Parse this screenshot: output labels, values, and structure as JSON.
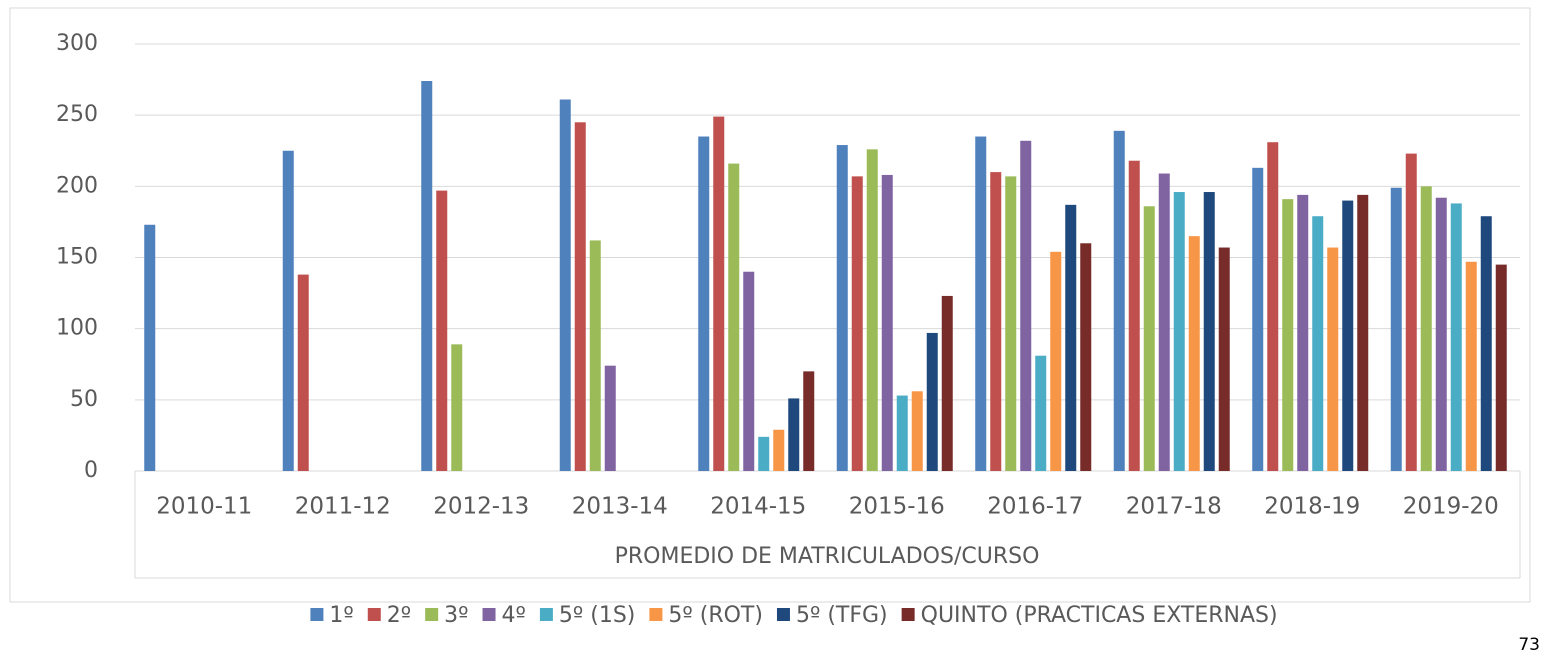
{
  "chart_data": {
    "type": "bar",
    "x_group_label": "PROMEDIO DE MATRICULADOS/CURSO",
    "categories": [
      "2010-11",
      "2011-12",
      "2012-13",
      "2013-14",
      "2014-15",
      "2015-16",
      "2016-17",
      "2017-18",
      "2018-19",
      "2019-20"
    ],
    "series": [
      {
        "name": "1º",
        "color": "#4f81bd",
        "values": [
          173,
          225,
          274,
          261,
          235,
          229,
          235,
          239,
          213,
          199
        ]
      },
      {
        "name": "2º",
        "color": "#c0504d",
        "values": [
          null,
          138,
          197,
          245,
          249,
          207,
          210,
          218,
          231,
          223
        ]
      },
      {
        "name": "3º",
        "color": "#9bbb59",
        "values": [
          null,
          null,
          89,
          162,
          216,
          226,
          207,
          186,
          191,
          200
        ]
      },
      {
        "name": "4º",
        "color": "#8064a2",
        "values": [
          null,
          null,
          null,
          74,
          140,
          208,
          232,
          209,
          194,
          192
        ]
      },
      {
        "name": "5º (1S)",
        "color": "#4bacc6",
        "values": [
          null,
          null,
          null,
          null,
          24,
          53,
          81,
          196,
          179,
          188
        ]
      },
      {
        "name": "5º (ROT)",
        "color": "#f79646",
        "values": [
          null,
          null,
          null,
          null,
          29,
          56,
          154,
          165,
          157,
          147
        ]
      },
      {
        "name": "5º (TFG)",
        "color": "#1f497d",
        "values": [
          null,
          null,
          null,
          null,
          51,
          97,
          187,
          196,
          190,
          179
        ]
      },
      {
        "name": "QUINTO (PRACTICAS EXTERNAS)",
        "color": "#772c2a",
        "values": [
          null,
          null,
          null,
          null,
          70,
          123,
          160,
          157,
          194,
          145
        ]
      }
    ],
    "ylim": [
      0,
      300
    ],
    "yticks": [
      0,
      50,
      100,
      150,
      200,
      250,
      300
    ],
    "grid": true,
    "legend": "bottom"
  },
  "page_number": "73"
}
